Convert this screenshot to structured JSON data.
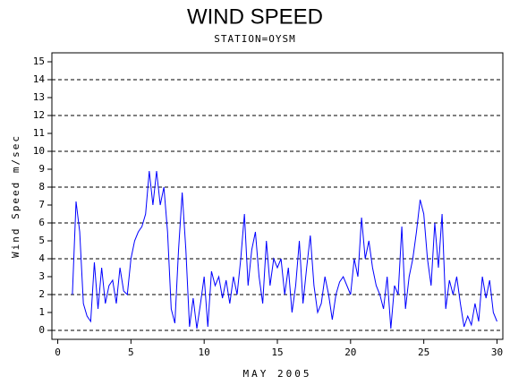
{
  "chart_data": {
    "type": "line",
    "title": "WIND SPEED",
    "subtitle": "STATION=OYSM",
    "x_label": "MAY 2005",
    "y_label": "Wind Speed m/sec",
    "x": [
      1,
      1.25,
      1.5,
      1.75,
      2,
      2.25,
      2.5,
      2.75,
      3,
      3.25,
      3.5,
      3.75,
      4,
      4.25,
      4.5,
      4.75,
      5,
      5.25,
      5.5,
      5.75,
      6,
      6.25,
      6.5,
      6.75,
      7,
      7.25,
      7.5,
      7.75,
      8,
      8.25,
      8.5,
      8.75,
      9,
      9.25,
      9.5,
      9.75,
      10,
      10.25,
      10.5,
      10.75,
      11,
      11.25,
      11.5,
      11.75,
      12,
      12.25,
      12.5,
      12.75,
      13,
      13.25,
      13.5,
      13.75,
      14,
      14.25,
      14.5,
      14.75,
      15,
      15.25,
      15.5,
      15.75,
      16,
      16.25,
      16.5,
      16.75,
      17,
      17.25,
      17.5,
      17.75,
      18,
      18.25,
      18.5,
      18.75,
      19,
      19.25,
      19.5,
      19.75,
      20,
      20.25,
      20.5,
      20.75,
      21,
      21.25,
      21.5,
      21.75,
      22,
      22.25,
      22.5,
      22.75,
      23,
      23.25,
      23.5,
      23.75,
      24,
      24.25,
      24.5,
      24.75,
      25,
      25.25,
      25.5,
      25.75,
      26,
      26.25,
      26.5,
      26.75,
      27,
      27.25,
      27.5,
      27.75,
      28,
      28.25,
      28.5,
      28.75,
      29,
      29.25,
      29.5,
      29.75,
      30
    ],
    "series": [
      {
        "color": "#0000ff",
        "values": [
          2,
          7.2,
          5.5,
          1.5,
          0.8,
          0.5,
          3.8,
          1.2,
          3.5,
          1.5,
          2.5,
          2.8,
          1.5,
          3.5,
          2.2,
          2,
          4,
          5,
          5.5,
          5.8,
          6.5,
          8.9,
          7,
          8.9,
          7,
          8,
          5.5,
          1.2,
          0.4,
          4.5,
          7.7,
          4.5,
          0.2,
          1.8,
          0.1,
          1.5,
          3,
          0.2,
          3.3,
          2.5,
          3,
          1.8,
          2.8,
          1.5,
          3,
          2,
          4,
          6.5,
          2.5,
          4.5,
          5.5,
          3,
          1.5,
          5,
          2.5,
          4,
          3.5,
          4,
          2,
          3.5,
          1,
          2.5,
          5,
          1.5,
          3.5,
          5.3,
          2.5,
          1,
          1.5,
          3,
          2,
          0.6,
          2,
          2.7,
          3,
          2.5,
          2,
          4,
          3,
          6.3,
          4,
          5,
          3.5,
          2.5,
          2,
          1.2,
          3,
          0.1,
          2.5,
          2,
          5.8,
          1.2,
          3,
          4,
          5.5,
          7.3,
          6.5,
          4,
          2.5,
          6,
          3.5,
          6.5,
          1.2,
          2.8,
          2,
          3,
          1.5,
          0.2,
          0.8,
          0.3,
          1.5,
          0.5,
          3,
          1.8,
          2.8,
          1,
          0.5
        ]
      }
    ],
    "xlim": [
      -0.4,
      30.4
    ],
    "xticks": [
      0,
      5,
      10,
      15,
      20,
      25,
      30
    ],
    "ylim": [
      -0.5,
      15.5
    ],
    "yticks": [
      0,
      1,
      2,
      3,
      4,
      5,
      6,
      7,
      8,
      9,
      10,
      11,
      12,
      13,
      14,
      15
    ],
    "grid_every": 2
  }
}
